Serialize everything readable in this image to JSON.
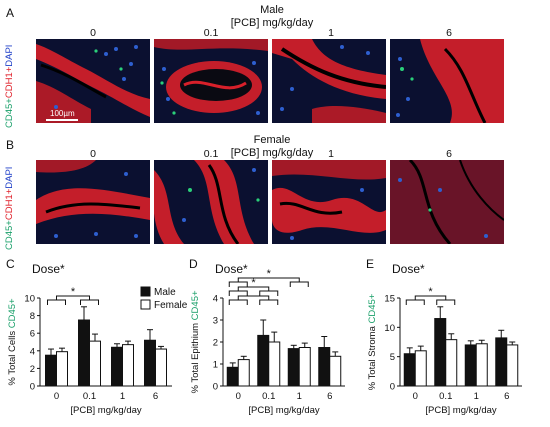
{
  "panels": {
    "A": {
      "letter": "A",
      "sex": "Male",
      "units": "[PCB] mg/kg/day",
      "doses": [
        "0",
        "0.1",
        "1",
        "6"
      ],
      "row_label": {
        "g": "CD45+",
        "r": "CDH1+",
        "b": "DAPI"
      },
      "scale_bar": "100µm"
    },
    "B": {
      "letter": "B",
      "sex": "Female",
      "units": "[PCB] mg/kg/day",
      "doses": [
        "0",
        "0.1",
        "1",
        "6"
      ],
      "row_label": {
        "g": "CD45+",
        "r": "CDH1+",
        "b": "DAPI"
      }
    }
  },
  "legend": {
    "male": "Male",
    "female": "Female"
  },
  "colors": {
    "male": "#111111",
    "female": "#ffffff",
    "cd45": "#1aa06a",
    "cdh1": "#e0202a",
    "dapi": "#2040c8"
  },
  "chart_data": [
    {
      "letter": "C",
      "type": "bar",
      "annotation": "Dose*",
      "categories": [
        "0",
        "0.1",
        "1",
        "6"
      ],
      "xlabel": "[PCB] mg/kg/day",
      "ylabel_black": "% Total Cells ",
      "ylabel_green": "CD45+",
      "ylim": [
        0,
        10
      ],
      "yticks": [
        0,
        2,
        4,
        6,
        8,
        10
      ],
      "ytick_labels": [
        "0",
        "2",
        "4",
        "6",
        "8",
        "10"
      ],
      "series": [
        {
          "name": "Male",
          "values": [
            3.5,
            7.5,
            4.4,
            5.2
          ],
          "errors": [
            0.7,
            1.5,
            0.4,
            1.2
          ]
        },
        {
          "name": "Female",
          "values": [
            3.9,
            5.1,
            4.7,
            4.2
          ],
          "errors": [
            0.4,
            0.8,
            0.4,
            0.3
          ]
        }
      ],
      "significance": [
        {
          "from": 0,
          "to": 1,
          "level": 0,
          "label": "*"
        }
      ]
    },
    {
      "letter": "D",
      "type": "bar",
      "annotation": "Dose*",
      "categories": [
        "0",
        "0.1",
        "1",
        "6"
      ],
      "xlabel": "[PCB] mg/kg/day",
      "ylabel_black": "% Total Epithium ",
      "ylabel_green": "CD45+",
      "ylim": [
        0,
        4
      ],
      "yticks": [
        0,
        1,
        2,
        3,
        4
      ],
      "ytick_labels": [
        "0",
        "1",
        "2",
        "3",
        "4"
      ],
      "series": [
        {
          "name": "Male",
          "values": [
            0.85,
            2.3,
            1.7,
            1.75
          ],
          "errors": [
            0.2,
            0.7,
            0.15,
            0.5
          ]
        },
        {
          "name": "Female",
          "values": [
            1.2,
            2.0,
            1.75,
            1.35
          ],
          "errors": [
            0.15,
            0.45,
            0.2,
            0.2
          ]
        }
      ],
      "significance": [
        {
          "from": 0,
          "to": 2,
          "level": 2,
          "label": "*"
        },
        {
          "from": 0,
          "to": 1,
          "level": 1,
          "label": "*"
        },
        {
          "from": 0,
          "to": 1,
          "level": 0,
          "label": ""
        }
      ]
    },
    {
      "letter": "E",
      "type": "bar",
      "annotation": "Dose*",
      "categories": [
        "0",
        "0.1",
        "1",
        "6"
      ],
      "xlabel": "[PCB] mg/kg/day",
      "ylabel_black": "% Total Stroma ",
      "ylabel_green": "CD45+",
      "ylim": [
        0,
        15
      ],
      "yticks": [
        0,
        5,
        10,
        15
      ],
      "ytick_labels": [
        "0",
        "5",
        "10",
        "15"
      ],
      "series": [
        {
          "name": "Male",
          "values": [
            5.5,
            11.5,
            7.0,
            8.2
          ],
          "errors": [
            1.0,
            2.0,
            0.7,
            1.3
          ]
        },
        {
          "name": "Female",
          "values": [
            6.0,
            7.9,
            7.2,
            7.0
          ],
          "errors": [
            0.8,
            1.0,
            0.6,
            0.5
          ]
        }
      ],
      "significance": [
        {
          "from": 0,
          "to": 1,
          "level": 0,
          "label": "*"
        }
      ]
    }
  ]
}
